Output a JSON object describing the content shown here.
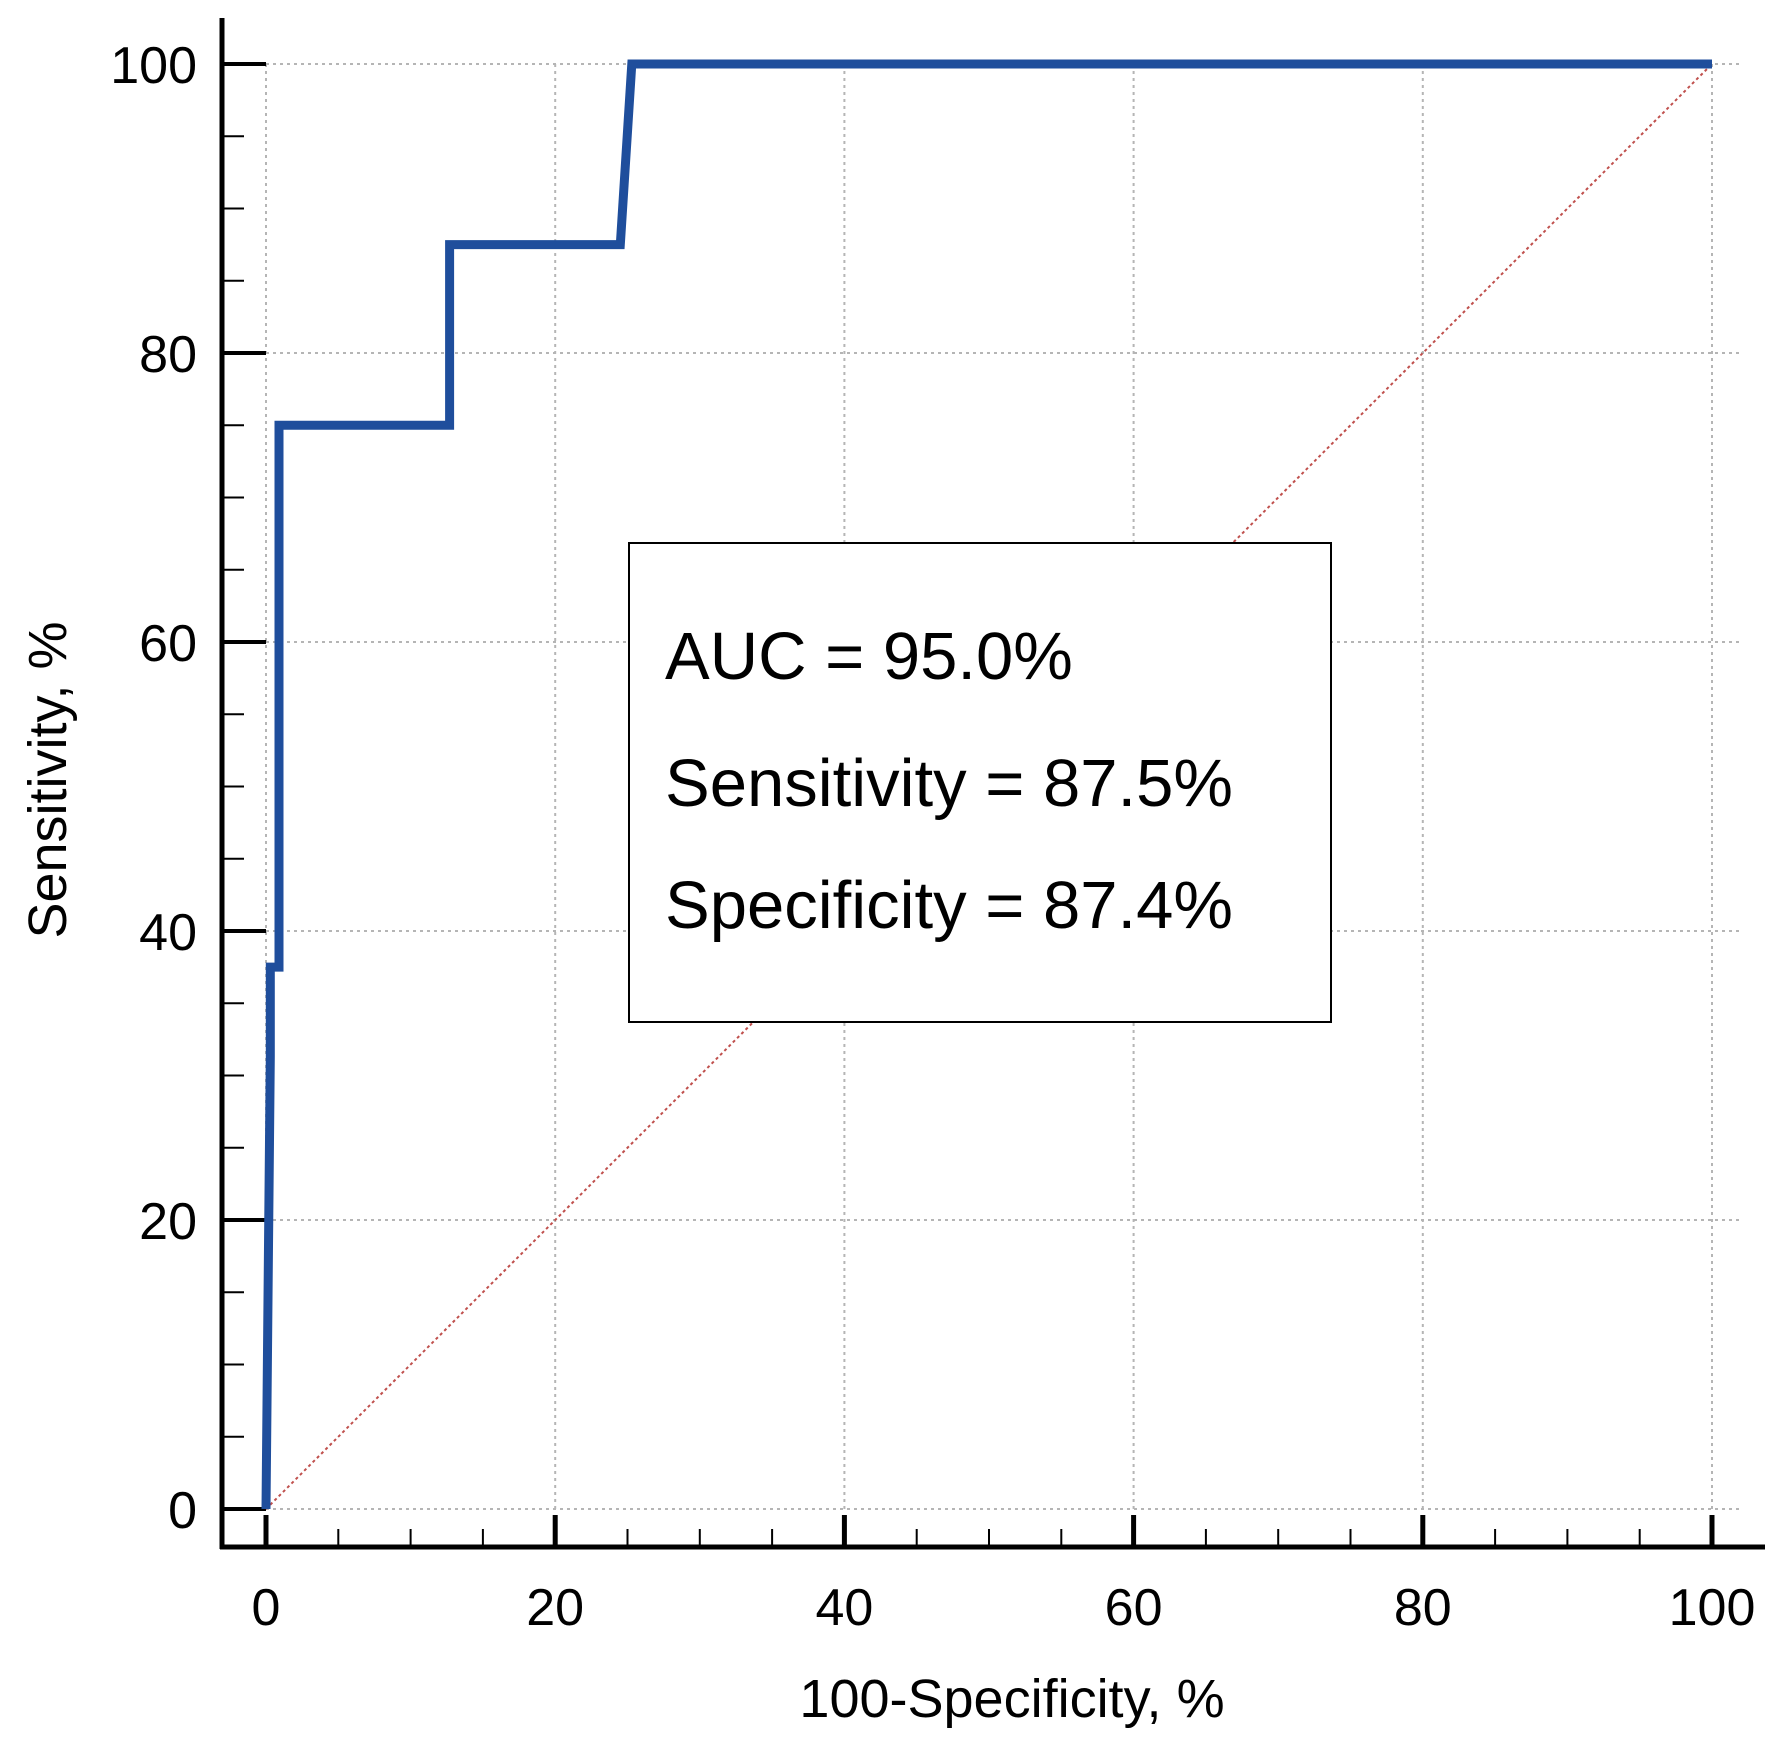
{
  "chart_data": {
    "type": "line",
    "xlabel": "100-Specificity, %",
    "ylabel": "Sensitivity, %",
    "xlim": [
      0,
      100
    ],
    "ylim": [
      0,
      100
    ],
    "x_ticks": [
      "0",
      "20",
      "40",
      "60",
      "80",
      "100"
    ],
    "y_ticks": [
      "0",
      "20",
      "40",
      "60",
      "80",
      "100"
    ],
    "grid": true,
    "series": [
      {
        "role": "roc-curve",
        "color": "#1f4e9c",
        "x": [
          0,
          0.3,
          0.3,
          0.9,
          0.9,
          12.7,
          12.7,
          24.5,
          25.3,
          100
        ],
        "y": [
          0,
          31.3,
          37.5,
          37.5,
          75,
          75,
          87.5,
          87.5,
          100,
          100
        ]
      },
      {
        "role": "reference-diagonal",
        "color": "#c0504d",
        "x": [
          0,
          100
        ],
        "y": [
          0,
          100
        ]
      }
    ],
    "annotations": {
      "auc": "AUC = 95.0%",
      "sensitivity": "Sensitivity = 87.5%",
      "specificity": "Specificity = 87.4%"
    }
  }
}
